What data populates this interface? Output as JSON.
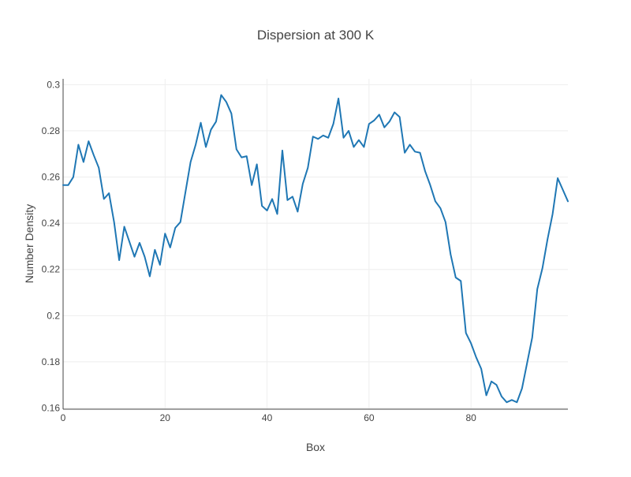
{
  "chart_data": {
    "type": "line",
    "title": "Dispersion at 300 K",
    "xlabel": "Box",
    "ylabel": "Number Density",
    "xlim": [
      0,
      99
    ],
    "ylim": [
      0.1595,
      0.3025
    ],
    "x_ticks": [
      0,
      20,
      40,
      60,
      80
    ],
    "x_tick_labels": [
      "0",
      "20",
      "40",
      "60",
      "80"
    ],
    "y_ticks": [
      0.16,
      0.18,
      0.2,
      0.22,
      0.24,
      0.26,
      0.28,
      0.3
    ],
    "y_tick_labels": [
      "0.16",
      "0.18",
      "0.2",
      "0.22",
      "0.24",
      "0.26",
      "0.28",
      "0.3"
    ],
    "grid": true,
    "colors": {
      "line": "#1f77b4",
      "grid": "#eeeeee",
      "axis": "#444444",
      "text": "#444444",
      "background": "#ffffff"
    },
    "series": [
      {
        "x": [
          0,
          1,
          2,
          3,
          4,
          5,
          6,
          7,
          8,
          9,
          10,
          11,
          12,
          13,
          14,
          15,
          16,
          17,
          18,
          19,
          20,
          21,
          22,
          23,
          24,
          25,
          26,
          27,
          28,
          29,
          30,
          31,
          32,
          33,
          34,
          35,
          36,
          37,
          38,
          39,
          40,
          41,
          42,
          43,
          44,
          45,
          46,
          47,
          48,
          49,
          50,
          51,
          52,
          53,
          54,
          55,
          56,
          57,
          58,
          59,
          60,
          61,
          62,
          63,
          64,
          65,
          66,
          67,
          68,
          69,
          70,
          71,
          72,
          73,
          74,
          75,
          76,
          77,
          78,
          79,
          80,
          81,
          82,
          83,
          84,
          85,
          86,
          87,
          88,
          89,
          90,
          91,
          92,
          93,
          94,
          95,
          96,
          97,
          98,
          99
        ],
        "y": [
          0.2565,
          0.2565,
          0.26,
          0.274,
          0.2665,
          0.2755,
          0.2695,
          0.264,
          0.2505,
          0.253,
          0.2405,
          0.224,
          0.2385,
          0.232,
          0.2255,
          0.2315,
          0.2255,
          0.217,
          0.2285,
          0.222,
          0.2355,
          0.2295,
          0.238,
          0.2405,
          0.2535,
          0.2665,
          0.274,
          0.2835,
          0.273,
          0.2805,
          0.284,
          0.2955,
          0.2925,
          0.2875,
          0.272,
          0.2685,
          0.269,
          0.2565,
          0.2655,
          0.2475,
          0.2455,
          0.2505,
          0.244,
          0.2715,
          0.25,
          0.2515,
          0.245,
          0.257,
          0.264,
          0.2775,
          0.2765,
          0.278,
          0.277,
          0.283,
          0.294,
          0.277,
          0.28,
          0.273,
          0.276,
          0.273,
          0.283,
          0.2845,
          0.287,
          0.2815,
          0.284,
          0.288,
          0.286,
          0.2705,
          0.274,
          0.271,
          0.2705,
          0.2625,
          0.2565,
          0.2495,
          0.2465,
          0.2405,
          0.2265,
          0.2165,
          0.215,
          0.1925,
          0.188,
          0.182,
          0.177,
          0.1655,
          0.1715,
          0.17,
          0.165,
          0.1625,
          0.1635,
          0.1625,
          0.1685,
          0.1795,
          0.1905,
          0.2115,
          0.2205,
          0.233,
          0.244,
          0.2595,
          0.2545,
          0.2495
        ]
      }
    ]
  }
}
